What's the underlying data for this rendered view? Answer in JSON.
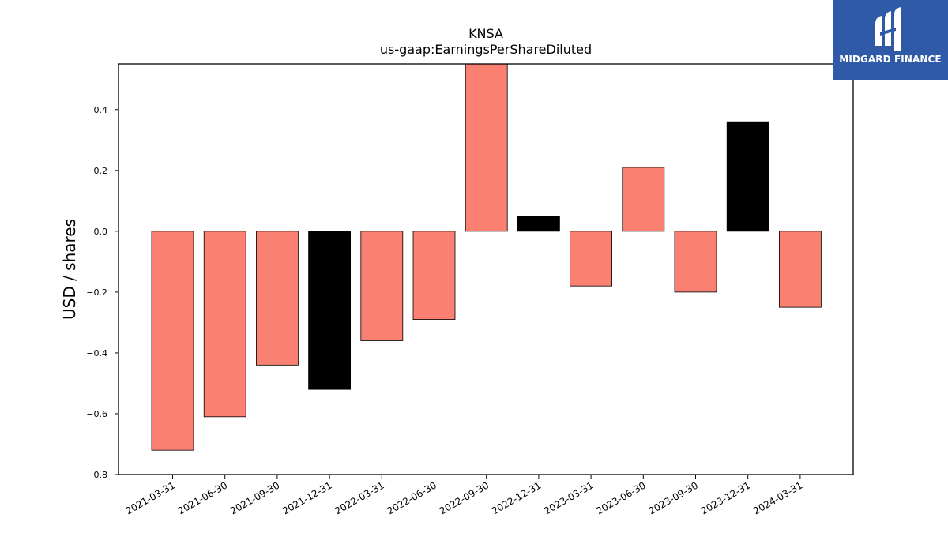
{
  "chart_data": {
    "type": "bar",
    "title": "KNSA",
    "subtitle": "us-gaap:EarningsPerShareDiluted",
    "xlabel": "",
    "ylabel": "USD / shares",
    "categories": [
      "2021-03-31",
      "2021-06-30",
      "2021-09-30",
      "2021-12-31",
      "2022-03-31",
      "2022-06-30",
      "2022-09-30",
      "2022-12-31",
      "2023-03-31",
      "2023-06-30",
      "2023-09-30",
      "2023-12-31",
      "2024-03-31"
    ],
    "values": [
      -0.72,
      -0.61,
      -0.44,
      -0.52,
      -0.36,
      -0.29,
      0.56,
      0.05,
      -0.18,
      0.21,
      -0.2,
      0.36,
      -0.25
    ],
    "bar_colors": [
      "#fa8072",
      "#fa8072",
      "#fa8072",
      "#000000",
      "#fa8072",
      "#fa8072",
      "#fa8072",
      "#000000",
      "#fa8072",
      "#fa8072",
      "#fa8072",
      "#000000",
      "#fa8072"
    ],
    "ylim": [
      -0.8,
      0.55
    ],
    "yticks": [
      -0.8,
      -0.6,
      -0.4,
      -0.2,
      0.0,
      0.2,
      0.4
    ],
    "ytick_labels": [
      "−0.8",
      "−0.6",
      "−0.4",
      "−0.2",
      "0.0",
      "0.2",
      "0.4"
    ],
    "grid": false,
    "legend": "none"
  },
  "logo": {
    "text": "MIDGARD FINANCE",
    "background": "#2f5aa8",
    "icon": "midgard-finance-logo-icon"
  }
}
